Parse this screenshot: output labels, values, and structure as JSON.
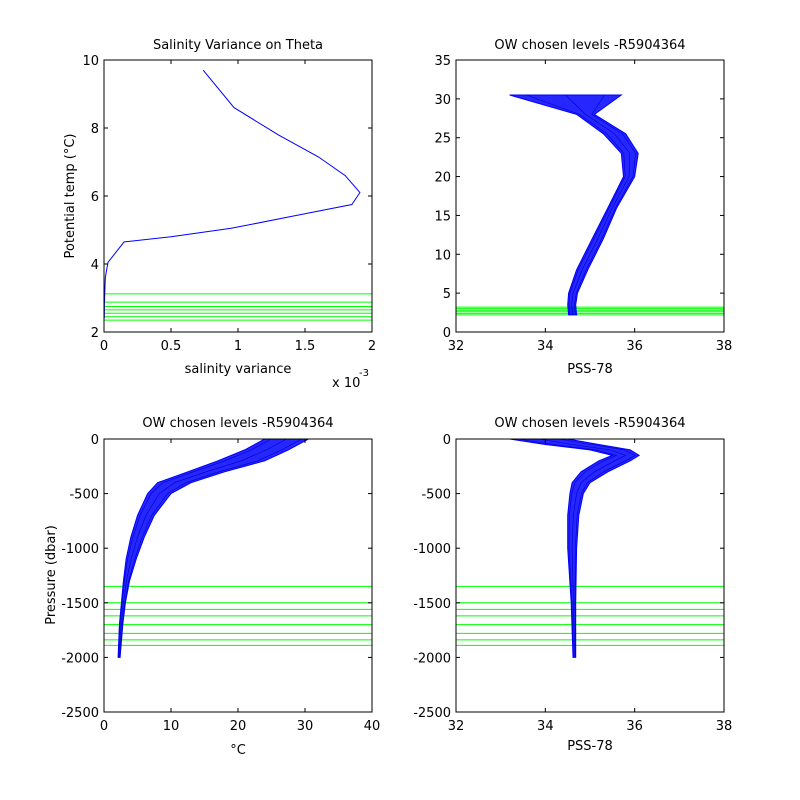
{
  "chart_data": [
    {
      "id": "p1",
      "type": "line",
      "title": "Salinity Variance on Theta",
      "xlabel": "salinity variance",
      "ylabel": "Potential temp (°C)",
      "x_exponent_label": "x 10",
      "x_exponent": "-3",
      "xlim": [
        0,
        2
      ],
      "ylim": [
        2,
        10
      ],
      "xticks": [
        0,
        0.5,
        1,
        1.5,
        2
      ],
      "xticklabels": [
        "0",
        "0.5",
        "1",
        "1.5",
        "2"
      ],
      "yticks": [
        2,
        4,
        6,
        8,
        10
      ],
      "yticklabels": [
        "2",
        "4",
        "6",
        "8",
        "10"
      ],
      "grid": false,
      "colors": {
        "curve": "#0000ff",
        "levels": "#00ff00"
      },
      "series": [
        {
          "x": [
            0.74,
            0.97,
            1.3,
            1.6,
            1.8,
            1.91,
            1.85,
            1.4,
            0.95,
            0.5,
            0.15,
            0.03,
            0.01,
            0.003,
            0.002
          ],
          "y": [
            9.7,
            8.6,
            7.8,
            7.15,
            6.6,
            6.1,
            5.75,
            5.4,
            5.05,
            4.8,
            4.65,
            4.05,
            3.6,
            2.8,
            2.4
          ]
        }
      ],
      "levels": {
        "axis": "y",
        "values": [
          2.35,
          2.45,
          2.55,
          2.65,
          2.75,
          2.88,
          3.12
        ]
      }
    },
    {
      "id": "p2",
      "type": "line",
      "title": "OW chosen levels -R5904364",
      "xlabel": "PSS-78",
      "ylabel": "",
      "xlim": [
        32,
        38
      ],
      "ylim": [
        0,
        35
      ],
      "xticks": [
        32,
        34,
        36,
        38
      ],
      "xticklabels": [
        "32",
        "34",
        "36",
        "38"
      ],
      "yticks": [
        0,
        5,
        10,
        15,
        20,
        25,
        30,
        35
      ],
      "yticklabels": [
        "0",
        "5",
        "10",
        "15",
        "20",
        "25",
        "30",
        "35"
      ],
      "grid": false,
      "colors": {
        "curve": "#0000ff",
        "levels": "#00ff00"
      },
      "profile_band": {
        "y": [
          2.2,
          3.5,
          5,
          8,
          12,
          16,
          20,
          23,
          25.5,
          28,
          30.5
        ],
        "x_left": [
          34.52,
          34.5,
          34.52,
          34.7,
          35.05,
          35.4,
          35.75,
          35.7,
          35.3,
          34.7,
          33.2
        ],
        "x_right": [
          34.7,
          34.68,
          34.72,
          34.95,
          35.3,
          35.6,
          36.0,
          36.08,
          35.8,
          35.1,
          35.7
        ]
      },
      "levels": {
        "axis": "y",
        "values": [
          2.2,
          2.4,
          2.6,
          2.8,
          3.0,
          3.2
        ]
      }
    },
    {
      "id": "p3",
      "type": "line",
      "title": "OW chosen levels -R5904364",
      "xlabel": "°C",
      "ylabel": "Pressure (dbar)",
      "xlim": [
        0,
        40
      ],
      "ylim": [
        -2500,
        0
      ],
      "xticks": [
        0,
        10,
        20,
        30,
        40
      ],
      "xticklabels": [
        "0",
        "10",
        "20",
        "30",
        "40"
      ],
      "yticks": [
        -2500,
        -2000,
        -1500,
        -1000,
        -500,
        0
      ],
      "yticklabels": [
        "-2500",
        "-2000",
        "-1500",
        "-1000",
        "-500",
        "0"
      ],
      "grid": false,
      "colors": {
        "curve": "#0000ff",
        "levels": "#00ff00"
      },
      "profile_band": {
        "y": [
          0,
          -100,
          -200,
          -300,
          -400,
          -500,
          -700,
          -900,
          -1100,
          -1300,
          -1500,
          -1700,
          -2000
        ],
        "x_left": [
          24,
          21,
          17,
          12.5,
          8,
          6.5,
          5,
          4,
          3.3,
          2.9,
          2.6,
          2.3,
          2.1
        ],
        "x_right": [
          30.5,
          27.5,
          24,
          18,
          13,
          10,
          7.5,
          6,
          4.8,
          3.8,
          3.2,
          2.8,
          2.4
        ]
      },
      "levels": {
        "axis": "y",
        "values": [
          -1350,
          -1500,
          -1560,
          -1620,
          -1700,
          -1780,
          -1840,
          -1890
        ]
      }
    },
    {
      "id": "p4",
      "type": "line",
      "title": "OW chosen levels -R5904364",
      "xlabel": "PSS-78",
      "ylabel": "",
      "xlim": [
        32,
        38
      ],
      "ylim": [
        -2500,
        0
      ],
      "xticks": [
        32,
        34,
        36,
        38
      ],
      "xticklabels": [
        "32",
        "34",
        "36",
        "38"
      ],
      "yticks": [
        -2500,
        -2000,
        -1500,
        -1000,
        -500,
        0
      ],
      "yticklabels": [
        "-2500",
        "-2000",
        "-1500",
        "-1000",
        "-500",
        "0"
      ],
      "grid": false,
      "colors": {
        "curve": "#0000ff",
        "levels": "#00ff00"
      },
      "profile_band": {
        "y": [
          0,
          -50,
          -100,
          -150,
          -200,
          -300,
          -400,
          -500,
          -700,
          -1000,
          -1500,
          -2000
        ],
        "x_left": [
          33.2,
          34.0,
          35.0,
          35.5,
          35.2,
          34.8,
          34.6,
          34.55,
          34.5,
          34.5,
          34.58,
          34.62
        ],
        "x_right": [
          34.5,
          35.2,
          35.9,
          36.1,
          35.9,
          35.4,
          35.0,
          34.85,
          34.75,
          34.7,
          34.68,
          34.68
        ]
      },
      "levels": {
        "axis": "y",
        "values": [
          -1350,
          -1500,
          -1560,
          -1620,
          -1700,
          -1780,
          -1840,
          -1890
        ]
      }
    }
  ]
}
